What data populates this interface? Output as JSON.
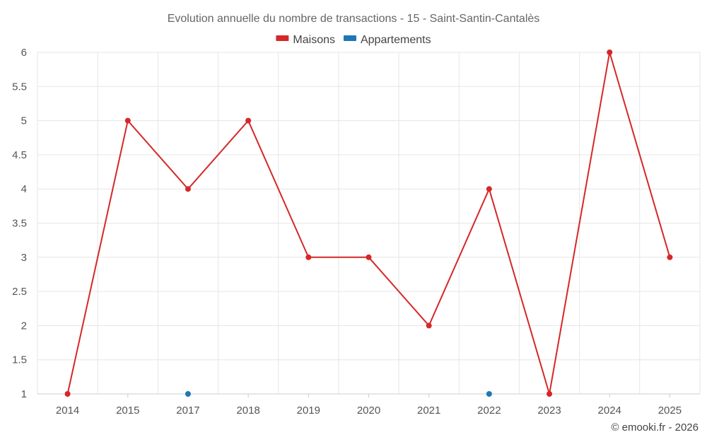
{
  "chart_data": {
    "type": "line",
    "title": "Evolution annuelle du nombre de transactions - 15 - Saint-Santin-Cantalès",
    "x": [
      "2014",
      "2015",
      "2017",
      "2018",
      "2019",
      "2020",
      "2021",
      "2022",
      "2023",
      "2024",
      "2025"
    ],
    "yticks": [
      "1",
      "1.5",
      "2",
      "2.5",
      "3",
      "3.5",
      "4",
      "4.5",
      "5",
      "5.5",
      "6"
    ],
    "ylim": [
      1,
      6
    ],
    "grid": true,
    "legend": "top-center",
    "series": [
      {
        "name": "Maisons",
        "color": "#d62728",
        "line": true,
        "points": [
          {
            "x": "2014",
            "y": 1
          },
          {
            "x": "2015",
            "y": 5
          },
          {
            "x": "2017",
            "y": 4
          },
          {
            "x": "2018",
            "y": 5
          },
          {
            "x": "2019",
            "y": 3
          },
          {
            "x": "2020",
            "y": 3
          },
          {
            "x": "2021",
            "y": 2
          },
          {
            "x": "2022",
            "y": 4
          },
          {
            "x": "2023",
            "y": 1
          },
          {
            "x": "2024",
            "y": 6
          },
          {
            "x": "2025",
            "y": 3
          }
        ]
      },
      {
        "name": "Appartements",
        "color": "#1f77b4",
        "line": false,
        "points": [
          {
            "x": "2017",
            "y": 1
          },
          {
            "x": "2022",
            "y": 1
          }
        ]
      }
    ]
  },
  "credit": "© emooki.fr - 2026"
}
